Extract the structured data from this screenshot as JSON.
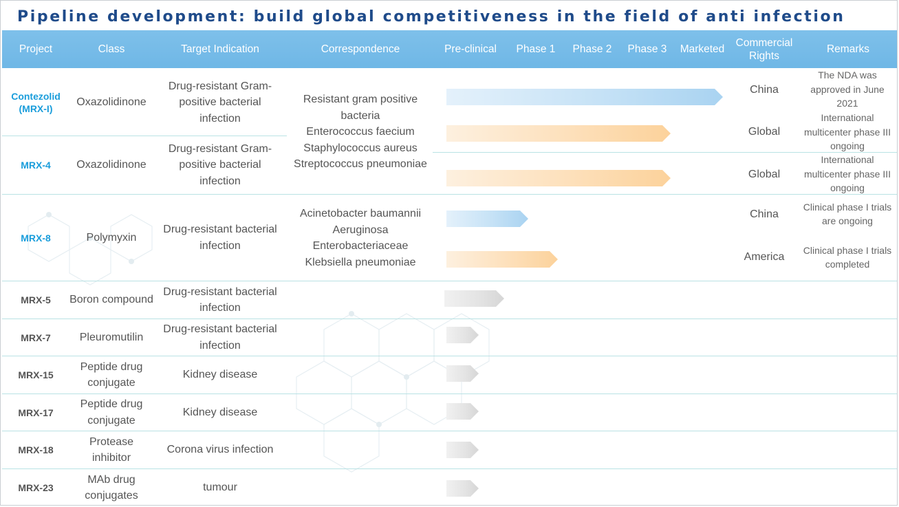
{
  "title": "Pipeline development: build global competitiveness in the field of anti infection",
  "colors": {
    "header_bg": "#78bce8",
    "title": "#1f4b8a",
    "project_highlight": "#1a9ddb",
    "arrow_blue": "#a9d3f1",
    "arrow_orange": "#fcd29b",
    "arrow_gray": "#d9d9d9"
  },
  "columns": [
    "Project",
    "Class",
    "Target Indication",
    "Correspondence",
    "Pre-clinical",
    "Phase 1",
    "Phase 2",
    "Phase 3",
    "Marketed",
    "Commercial Rights",
    "Remarks"
  ],
  "rows": [
    {
      "project": "Contezolid (MRX-I)",
      "class": "Oxazolidinone",
      "indication": "Drug-resistant Gram-positive bacterial infection"
    },
    {
      "project": "MRX-4",
      "class": "Oxazolidinone",
      "indication": "Drug-resistant Gram-positive bacterial infection"
    },
    {
      "project": "MRX-8",
      "class": "Polymyxin",
      "indication": "Drug-resistant bacterial infection"
    },
    {
      "project": "MRX-5",
      "class": "Boron compound",
      "indication": "Drug-resistant bacterial infection"
    },
    {
      "project": "MRX-7",
      "class": "Pleuromutilin",
      "indication": "Drug-resistant bacterial infection"
    },
    {
      "project": "MRX-15",
      "class": "Peptide drug conjugate",
      "indication": "Kidney disease"
    },
    {
      "project": "MRX-17",
      "class": "Peptide drug conjugate",
      "indication": "Kidney disease"
    },
    {
      "project": "MRX-18",
      "class": "Protease inhibitor",
      "indication": "Corona virus infection"
    },
    {
      "project": "MRX-23",
      "class": "MAb drug conjugates",
      "indication": "tumour"
    }
  ],
  "correspondence": [
    "Resistant gram positive bacteria\nEnterococcus faecium\nStaphylococcus aureus\nStreptococcus pneumoniae",
    "Acinetobacter baumannii\nAeruginosa\nEnterobacteriaceae\nKlebsiella pneumoniae"
  ],
  "tracks": [
    {
      "project": "Contezolid (MRX-I)",
      "stage": "Marketed",
      "color": "blue",
      "rights": "China",
      "remarks": "The NDA was approved in June 2021"
    },
    {
      "project": "Contezolid (MRX-I)",
      "stage": "Phase 3",
      "color": "orange",
      "rights": "Global",
      "remarks": "International multicenter phase III ongoing"
    },
    {
      "project": "MRX-4",
      "stage": "Phase 3",
      "color": "orange",
      "rights": "Global",
      "remarks": "International multicenter phase III ongoing"
    },
    {
      "project": "MRX-8",
      "stage": "Phase 1",
      "color": "blue",
      "rights": "China",
      "remarks": "Clinical phase I trials are ongoing"
    },
    {
      "project": "MRX-8",
      "stage": "Phase 1",
      "color": "orange",
      "rights": "America",
      "remarks": "Clinical phase I trials completed"
    },
    {
      "project": "MRX-5",
      "stage": "Pre-clinical",
      "color": "gray",
      "rights": "",
      "remarks": ""
    },
    {
      "project": "MRX-7",
      "stage": "Pre-clinical",
      "color": "gray",
      "rights": "",
      "remarks": ""
    },
    {
      "project": "MRX-15",
      "stage": "Pre-clinical",
      "color": "gray",
      "rights": "",
      "remarks": ""
    },
    {
      "project": "MRX-17",
      "stage": "Pre-clinical",
      "color": "gray",
      "rights": "",
      "remarks": ""
    },
    {
      "project": "MRX-18",
      "stage": "Pre-clinical",
      "color": "gray",
      "rights": "",
      "remarks": ""
    },
    {
      "project": "MRX-23",
      "stage": "Pre-clinical",
      "color": "gray",
      "rights": "",
      "remarks": ""
    }
  ]
}
